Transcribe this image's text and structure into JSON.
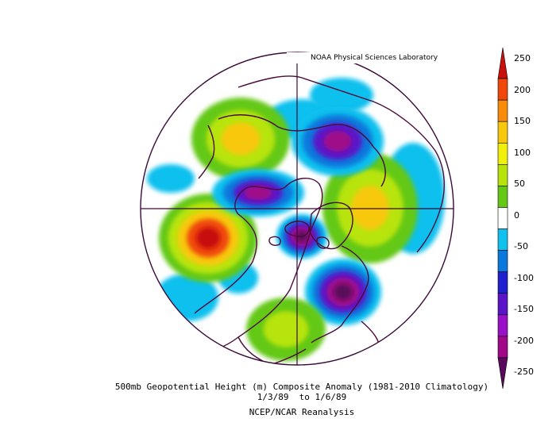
{
  "credit": "NOAA Physical Sciences Laboratory",
  "caption": {
    "line1": "500mb Geopotential Height (m) Composite Anomaly (1981-2010 Climatology)",
    "line2": "1/3/89  to 1/6/89",
    "line3": "NCEP/NCAR Reanalysis"
  },
  "colorbar": {
    "labels": [
      "250",
      "200",
      "150",
      "100",
      "50",
      "0",
      "-50",
      "-100",
      "-150",
      "-200",
      "-250"
    ],
    "colors": [
      "#c8100c",
      "#f0480a",
      "#f88c0a",
      "#f8c80c",
      "#f0f00c",
      "#b8e40c",
      "#64c814",
      "#ffffff",
      "#10c0ee",
      "#0a78dc",
      "#2020d0",
      "#5a14c8",
      "#9a10c8",
      "#a00888",
      "#5a0a5a"
    ]
  },
  "map": {
    "projection": "north-polar-stereographic",
    "land_outline_color": "#4a0a3a",
    "anomaly_centers": [
      {
        "name": "north-atlantic-positive",
        "value": 150
      },
      {
        "name": "eurasia-positive",
        "value": 150
      },
      {
        "name": "north-pacific-positive",
        "value": 250
      },
      {
        "name": "siberia-negative",
        "value": -200
      },
      {
        "name": "greenland-negative",
        "value": -200
      },
      {
        "name": "north-america-negative",
        "value": -250
      },
      {
        "name": "arctic-negative",
        "value": -250
      },
      {
        "name": "us-positive",
        "value": 100
      }
    ]
  }
}
